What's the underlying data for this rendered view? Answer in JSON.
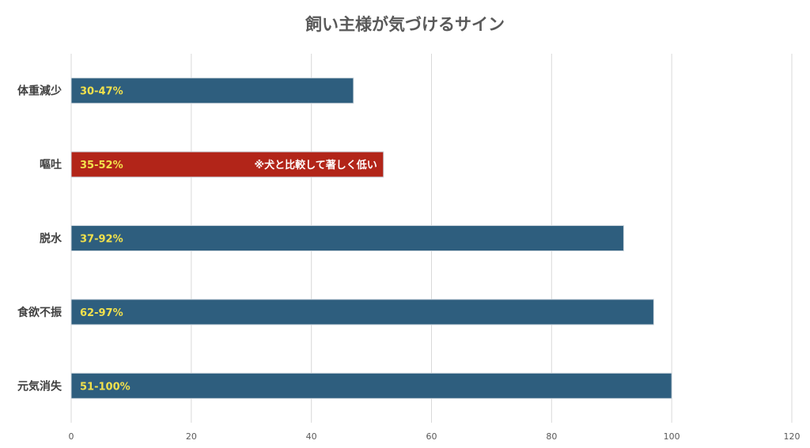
{
  "chart_data": {
    "type": "bar",
    "orientation": "horizontal",
    "title": "飼い主様が気づけるサイン",
    "xlabel": "",
    "ylabel": "",
    "xlim": [
      0,
      120
    ],
    "xticks": [
      "0",
      "20",
      "40",
      "60",
      "80",
      "100",
      "120"
    ],
    "grid": true,
    "legend": "none",
    "categories": [
      "体重減少",
      "嘔吐",
      "脱水",
      "食欲不振",
      "元気消失"
    ],
    "values": [
      47,
      52,
      92,
      97,
      100
    ],
    "data_labels": [
      "30-47%",
      "35-52%",
      "37-92%",
      "62-97%",
      "51-100%"
    ],
    "annotations": [
      {
        "category": "嘔吐",
        "text": "※犬と比較して著しく低い"
      }
    ],
    "colors": {
      "bar": "#2e5e7e",
      "highlight_bar": "#b22519",
      "data_label": "#f2e14c",
      "annotation_text": "#ffffff",
      "grid": "#d9d9d9",
      "title": "#595959",
      "category_label": "#404040"
    },
    "highlight_category": "嘔吐"
  }
}
